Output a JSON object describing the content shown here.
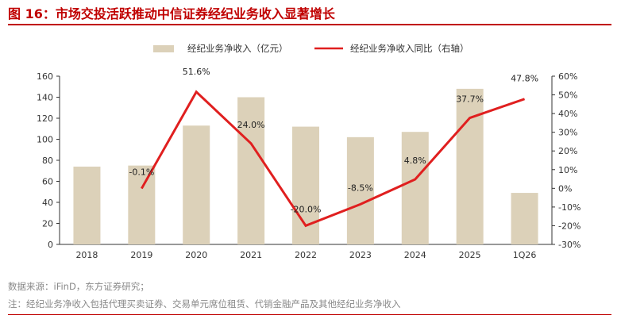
{
  "figure": {
    "title": "图 16：市场交投活跃推动中信证券经纪业务收入显著增长",
    "source": "数据来源：iFinD，东方证券研究；",
    "note": "注：经纪业务净收入包括代理买卖证券、交易单元席位租赁、代销金融产品及其他经纪业务净收入"
  },
  "colors": {
    "title": "#c00000",
    "bar": "#dcd1b9",
    "line": "#e01f1f"
  },
  "chart_data": {
    "type": "bar",
    "categories": [
      "2018",
      "2019",
      "2020",
      "2021",
      "2022",
      "2023",
      "2024",
      "2025",
      "1Q26"
    ],
    "series": [
      {
        "name": "经纪业务净收入（亿元）",
        "type": "bar",
        "axis": "left",
        "values": [
          74,
          75,
          113,
          140,
          112,
          102,
          107,
          148,
          49
        ]
      },
      {
        "name": "经纪业务净收入同比（右轴）",
        "type": "line",
        "axis": "right",
        "values": [
          null,
          -0.1,
          51.6,
          24.0,
          -20.0,
          -8.5,
          4.8,
          37.7,
          47.8
        ],
        "labels": [
          "",
          "-0.1%",
          "51.6%",
          "24.0%",
          "-20.0%",
          "-8.5%",
          "4.8%",
          "37.7%",
          "47.8%"
        ]
      }
    ],
    "y_left": {
      "range": [
        0,
        160
      ],
      "ticks": [
        0,
        20,
        40,
        60,
        80,
        100,
        120,
        140,
        160
      ],
      "tick_labels": [
        "0",
        "20",
        "40",
        "60",
        "80",
        "100",
        "120",
        "140",
        "160"
      ]
    },
    "y_right": {
      "range": [
        -30,
        60
      ],
      "ticks": [
        -30,
        -20,
        -10,
        0,
        10,
        20,
        30,
        40,
        50,
        60
      ],
      "tick_labels": [
        "-30%",
        "-20%",
        "-10%",
        "0%",
        "10%",
        "20%",
        "30%",
        "40%",
        "50%",
        "60%"
      ]
    },
    "legend": "top",
    "grid": false
  }
}
